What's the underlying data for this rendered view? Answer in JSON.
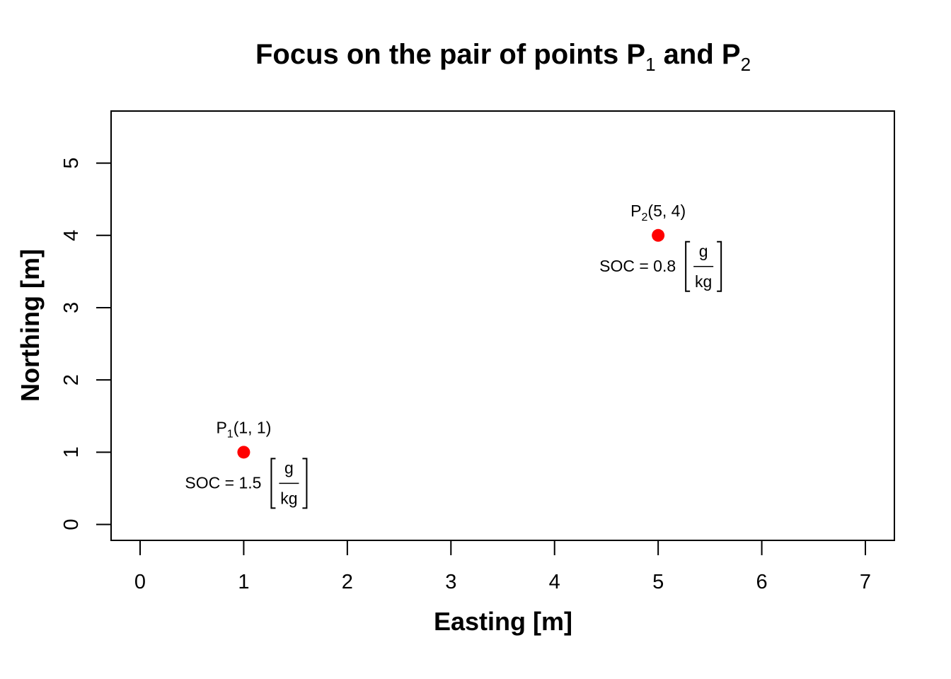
{
  "chart_data": {
    "type": "scatter",
    "title_main": "Focus on the pair of points P",
    "title_sub1": "1",
    "title_and": " and P",
    "title_sub2": "2",
    "xlabel": "Easting [m]",
    "ylabel": "Northing [m]",
    "xlim": [
      -0.28,
      7.28
    ],
    "ylim": [
      -0.22,
      5.72
    ],
    "xticks": [
      0,
      1,
      2,
      3,
      4,
      5,
      6,
      7
    ],
    "yticks": [
      0,
      1,
      2,
      3,
      4,
      5
    ],
    "point_color": "#ff0000",
    "points": [
      {
        "name": "P",
        "sub": "1",
        "coords": "(1, 1)",
        "x": 1,
        "y": 1,
        "soc_label": "SOC = 1.5",
        "num": "g",
        "den": "kg"
      },
      {
        "name": "P",
        "sub": "2",
        "coords": "(5, 4)",
        "x": 5,
        "y": 4,
        "soc_label": "SOC = 0.8",
        "num": "g",
        "den": "kg"
      }
    ]
  }
}
